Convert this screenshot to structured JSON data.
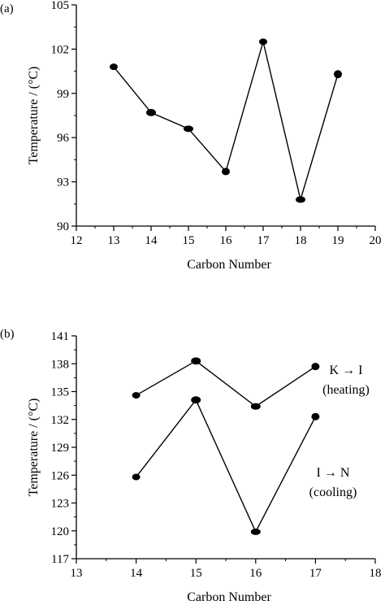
{
  "chart_data": [
    {
      "type": "line",
      "panel_label": "(a)",
      "xlabel": "Carbon Number",
      "ylabel": "Temperature / (°C)",
      "xlim": [
        12,
        20
      ],
      "ylim": [
        90,
        105
      ],
      "xticks": [
        12,
        13,
        14,
        15,
        16,
        17,
        18,
        19,
        20
      ],
      "yticks": [
        90,
        93,
        96,
        99,
        102,
        105
      ],
      "grid": false,
      "series": [
        {
          "x": [
            13,
            14,
            15,
            16,
            17,
            18,
            19
          ],
          "y": [
            100.8,
            97.7,
            96.6,
            93.7,
            102.5,
            91.8,
            100.3
          ]
        }
      ],
      "annotations": []
    },
    {
      "type": "line",
      "panel_label": "(b)",
      "xlabel": "Carbon Number",
      "ylabel": "Temperature / (°C)",
      "xlim": [
        13,
        18
      ],
      "ylim": [
        117,
        141
      ],
      "xticks": [
        13,
        14,
        15,
        16,
        17,
        18
      ],
      "yticks": [
        117,
        120,
        123,
        126,
        129,
        132,
        135,
        138,
        141
      ],
      "grid": false,
      "series": [
        {
          "x": [
            14,
            15,
            16,
            17
          ],
          "y": [
            134.6,
            138.3,
            133.4,
            137.7
          ]
        },
        {
          "x": [
            14,
            15,
            16,
            17
          ],
          "y": [
            125.8,
            134.1,
            119.9,
            132.3
          ]
        }
      ],
      "annotations": [
        {
          "lines": [
            "K → I",
            "(heating)"
          ],
          "near_series": 0
        },
        {
          "lines": [
            "I → N",
            "(cooling)"
          ],
          "near_series": 1
        }
      ]
    }
  ]
}
